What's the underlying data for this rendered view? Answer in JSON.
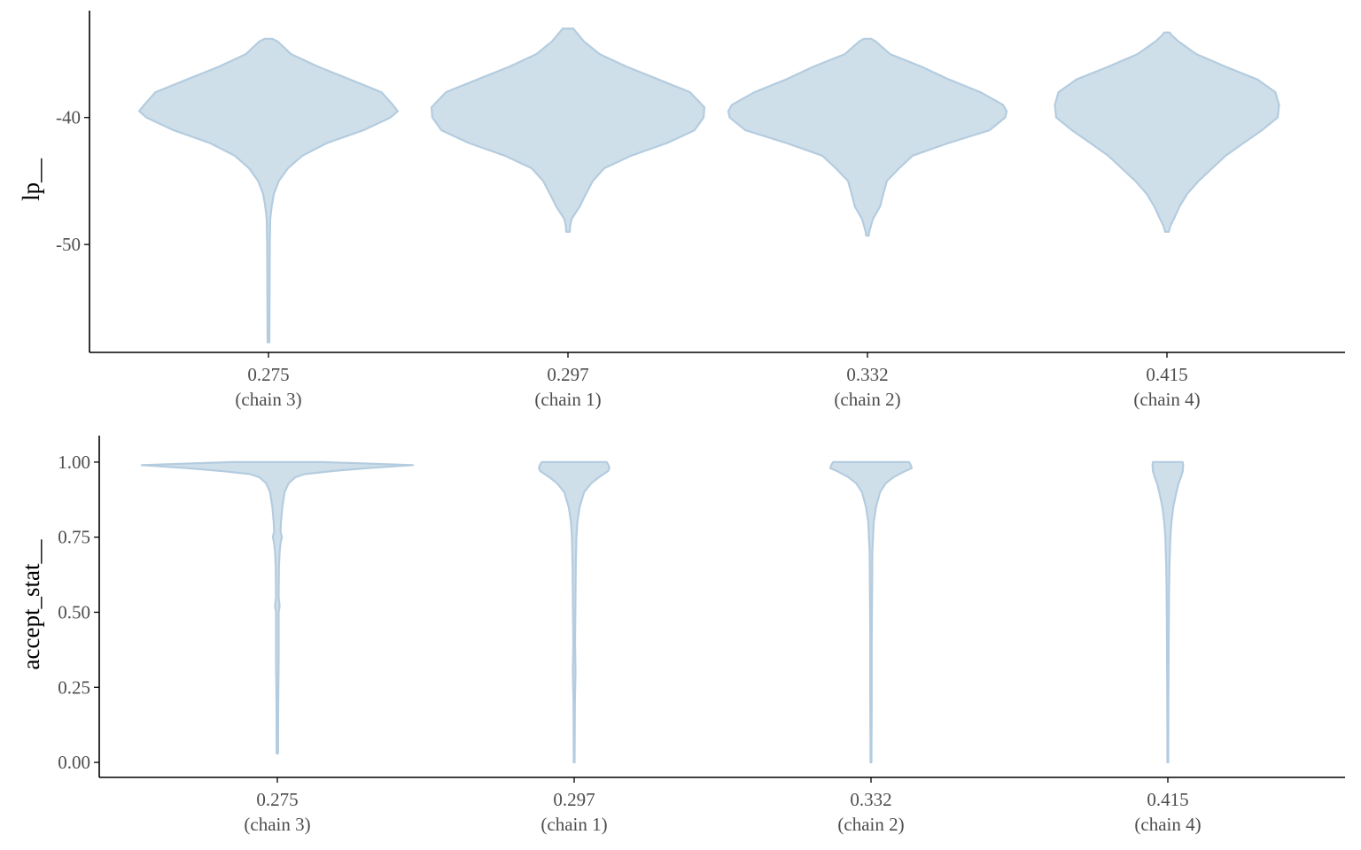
{
  "chart_data": [
    {
      "type": "violin",
      "ylabel": "lp__",
      "ylim": [
        -58.5,
        -31.3
      ],
      "yticks": [
        -40,
        -50
      ],
      "ytick_labels": [
        "-40",
        "-50"
      ],
      "categories": [
        {
          "value": "0.275",
          "chain": "(chain 3)"
        },
        {
          "value": "0.297",
          "chain": "(chain 1)"
        },
        {
          "value": "0.332",
          "chain": "(chain 2)"
        },
        {
          "value": "0.415",
          "chain": "(chain 4)"
        }
      ],
      "violins": [
        {
          "profile": [
            [
              -57.7,
              0.2
            ],
            [
              -53,
              0.25
            ],
            [
              -50,
              0.3
            ],
            [
              -48,
              0.4
            ],
            [
              -47,
              0.7
            ],
            [
              -46,
              1.2
            ],
            [
              -45,
              2.3
            ],
            [
              -44,
              4.3
            ],
            [
              -43,
              7.5
            ],
            [
              -42,
              13
            ],
            [
              -41,
              21
            ],
            [
              -40,
              27
            ],
            [
              -39.5,
              28.6
            ],
            [
              -39,
              27.5
            ],
            [
              -38,
              25
            ],
            [
              -37,
              18
            ],
            [
              -36,
              11
            ],
            [
              -35,
              5
            ],
            [
              -34,
              2
            ],
            [
              -33.8,
              0.8
            ]
          ]
        },
        {
          "profile": [
            [
              -49.0,
              0.4
            ],
            [
              -48.5,
              0.5
            ],
            [
              -48,
              0.8
            ],
            [
              -47,
              2.6
            ],
            [
              -46,
              4
            ],
            [
              -45,
              5.5
            ],
            [
              -44,
              8
            ],
            [
              -43,
              14
            ],
            [
              -42,
              22
            ],
            [
              -41,
              28
            ],
            [
              -40,
              30
            ],
            [
              -39.2,
              30.2
            ],
            [
              -38,
              27
            ],
            [
              -37,
              20
            ],
            [
              -36,
              13
            ],
            [
              -35,
              7
            ],
            [
              -34,
              3.5
            ],
            [
              -33,
              1.2
            ]
          ]
        },
        {
          "profile": [
            [
              -49.3,
              0.3
            ],
            [
              -49,
              0.4
            ],
            [
              -48,
              1.2
            ],
            [
              -47,
              2.8
            ],
            [
              -46,
              3.5
            ],
            [
              -45,
              4.3
            ],
            [
              -44,
              7
            ],
            [
              -43,
              10
            ],
            [
              -42,
              18
            ],
            [
              -41,
              27
            ],
            [
              -40,
              30.5
            ],
            [
              -39.5,
              30.8
            ],
            [
              -39,
              30
            ],
            [
              -38,
              25
            ],
            [
              -37,
              18
            ],
            [
              -36,
              12
            ],
            [
              -35,
              5
            ],
            [
              -34,
              1.8
            ],
            [
              -33.8,
              0.8
            ]
          ]
        },
        {
          "profile": [
            [
              -49.0,
              0.4
            ],
            [
              -48.5,
              0.8
            ],
            [
              -48,
              1.5
            ],
            [
              -47,
              2.8
            ],
            [
              -46,
              4.5
            ],
            [
              -45,
              7
            ],
            [
              -44,
              10
            ],
            [
              -43,
              13
            ],
            [
              -42,
              17
            ],
            [
              -41,
              21
            ],
            [
              -40,
              24.5
            ],
            [
              -39,
              24.8
            ],
            [
              -38,
              24
            ],
            [
              -37,
              20
            ],
            [
              -36,
              13
            ],
            [
              -35,
              6.5
            ],
            [
              -34,
              2.5
            ],
            [
              -33.5,
              1
            ],
            [
              -33.3,
              0.6
            ]
          ]
        }
      ]
    },
    {
      "type": "violin",
      "ylabel": "accept_stat__",
      "ylim": [
        -0.05,
        1.1
      ],
      "yticks": [
        0.0,
        0.25,
        0.5,
        0.75,
        1.0
      ],
      "ytick_labels": [
        "0.00",
        "0.25",
        "0.50",
        "0.75",
        "1.00"
      ],
      "categories": [
        {
          "value": "0.275",
          "chain": "(chain 3)"
        },
        {
          "value": "0.297",
          "chain": "(chain 1)"
        },
        {
          "value": "0.332",
          "chain": "(chain 2)"
        },
        {
          "value": "0.415",
          "chain": "(chain 4)"
        }
      ],
      "violins": [
        {
          "profile": [
            [
              0.03,
              0.15
            ],
            [
              0.2,
              0.2
            ],
            [
              0.35,
              0.3
            ],
            [
              0.5,
              0.3
            ],
            [
              0.52,
              0.5
            ],
            [
              0.55,
              0.3
            ],
            [
              0.65,
              0.35
            ],
            [
              0.7,
              0.5
            ],
            [
              0.73,
              0.7
            ],
            [
              0.75,
              1.0
            ],
            [
              0.77,
              0.7
            ],
            [
              0.8,
              0.8
            ],
            [
              0.85,
              1.1
            ],
            [
              0.9,
              1.6
            ],
            [
              0.93,
              2.5
            ],
            [
              0.95,
              4
            ],
            [
              0.96,
              6
            ],
            [
              0.97,
              12
            ],
            [
              0.98,
              20
            ],
            [
              0.99,
              30
            ],
            [
              0.997,
              16
            ],
            [
              1.0,
              10
            ]
          ]
        },
        {
          "profile": [
            [
              0.0,
              0.1
            ],
            [
              0.2,
              0.15
            ],
            [
              0.3,
              0.3
            ],
            [
              0.4,
              0.2
            ],
            [
              0.55,
              0.3
            ],
            [
              0.65,
              0.35
            ],
            [
              0.75,
              0.5
            ],
            [
              0.8,
              0.7
            ],
            [
              0.85,
              1.2
            ],
            [
              0.9,
              2.2
            ],
            [
              0.93,
              3.8
            ],
            [
              0.95,
              5.5
            ],
            [
              0.97,
              7.5
            ],
            [
              0.98,
              7.8
            ],
            [
              0.99,
              7.6
            ],
            [
              1.0,
              7.2
            ]
          ]
        },
        {
          "profile": [
            [
              0.0,
              0.1
            ],
            [
              0.2,
              0.15
            ],
            [
              0.4,
              0.15
            ],
            [
              0.6,
              0.25
            ],
            [
              0.7,
              0.3
            ],
            [
              0.75,
              0.45
            ],
            [
              0.8,
              0.6
            ],
            [
              0.85,
              1.1
            ],
            [
              0.9,
              2
            ],
            [
              0.93,
              3.3
            ],
            [
              0.95,
              5
            ],
            [
              0.97,
              7.5
            ],
            [
              0.98,
              9
            ],
            [
              0.99,
              8.8
            ],
            [
              1.0,
              8.4
            ]
          ]
        },
        {
          "profile": [
            [
              0.0,
              0.1
            ],
            [
              0.2,
              0.12
            ],
            [
              0.4,
              0.2
            ],
            [
              0.55,
              0.25
            ],
            [
              0.65,
              0.35
            ],
            [
              0.75,
              0.55
            ],
            [
              0.8,
              0.8
            ],
            [
              0.85,
              1.2
            ],
            [
              0.9,
              1.9
            ],
            [
              0.93,
              2.4
            ],
            [
              0.95,
              2.9
            ],
            [
              0.97,
              3.3
            ],
            [
              0.99,
              3.4
            ],
            [
              1.0,
              3.3
            ]
          ]
        }
      ]
    }
  ],
  "style": {
    "violin_fill": "#cfdfea",
    "violin_stroke": "#b4ccdf"
  }
}
